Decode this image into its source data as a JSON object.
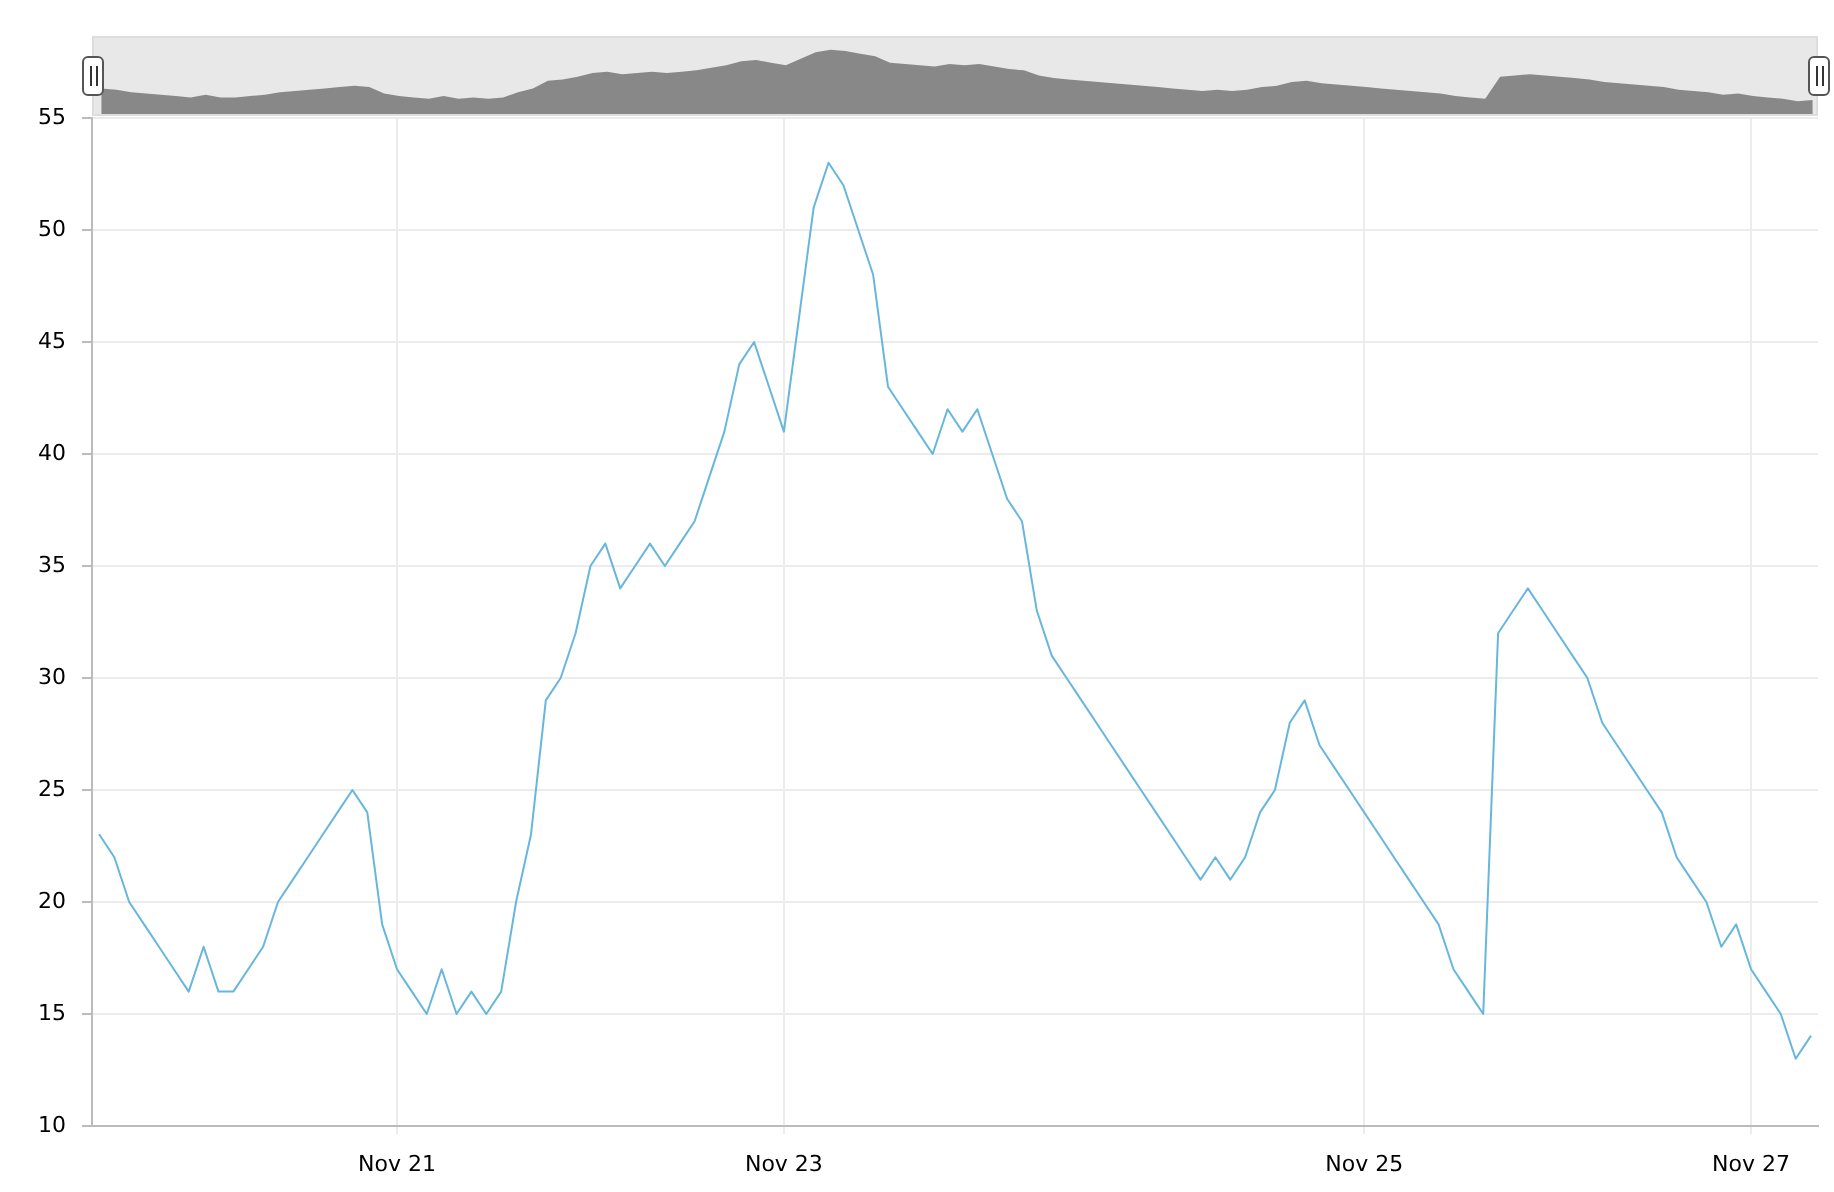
{
  "chart_data": {
    "type": "line",
    "categories": [
      null,
      null,
      null,
      null,
      null,
      null,
      null,
      null,
      null,
      null,
      null,
      null,
      null,
      null,
      null,
      null,
      null,
      null,
      null,
      null,
      "Nov 21",
      null,
      null,
      null,
      null,
      null,
      null,
      null,
      null,
      null,
      null,
      null,
      null,
      null,
      null,
      null,
      null,
      null,
      null,
      null,
      null,
      null,
      null,
      null,
      null,
      null,
      "Nov 23",
      null,
      null,
      null,
      null,
      null,
      null,
      null,
      null,
      null,
      null,
      null,
      null,
      null,
      null,
      null,
      null,
      null,
      null,
      null,
      null,
      null,
      null,
      null,
      null,
      null,
      null,
      null,
      null,
      null,
      null,
      null,
      null,
      null,
      null,
      null,
      null,
      null,
      null,
      "Nov 25",
      null,
      null,
      null,
      null,
      null,
      null,
      null,
      null,
      null,
      null,
      null,
      null,
      null,
      null,
      null,
      null,
      null,
      null,
      null,
      null,
      null,
      null,
      null,
      null,
      null,
      "Nov 27",
      null,
      null,
      null,
      null
    ],
    "series": [
      {
        "color": "#67b7dc",
        "values": [
          23,
          22,
          20,
          19,
          18,
          17,
          16,
          18,
          16,
          16,
          17,
          18,
          20,
          21,
          22,
          23,
          24,
          25,
          24,
          19,
          17,
          16,
          15,
          17,
          15,
          16,
          15,
          16,
          20,
          23,
          29,
          30,
          32,
          35,
          36,
          34,
          35,
          36,
          35,
          36,
          37,
          39,
          41,
          44,
          45,
          43,
          41,
          46,
          51,
          53,
          52,
          50,
          48,
          43,
          42,
          41,
          40,
          42,
          41,
          42,
          40,
          38,
          37,
          33,
          31,
          30,
          29,
          28,
          27,
          26,
          25,
          24,
          23,
          22,
          21,
          22,
          21,
          22,
          24,
          25,
          28,
          29,
          27,
          26,
          25,
          24,
          23,
          22,
          21,
          20,
          19,
          17,
          16,
          15,
          32,
          33,
          34,
          33,
          32,
          31,
          30,
          28,
          27,
          26,
          25,
          24,
          22,
          21,
          20,
          18,
          19,
          17,
          16,
          15,
          13,
          14
        ]
      }
    ],
    "ylim": [
      10,
      55
    ],
    "yticks": [
      10,
      15,
      20,
      25,
      30,
      35,
      40,
      45,
      50,
      55
    ],
    "grid": true,
    "marker": "none",
    "line_style": "solid"
  }
}
